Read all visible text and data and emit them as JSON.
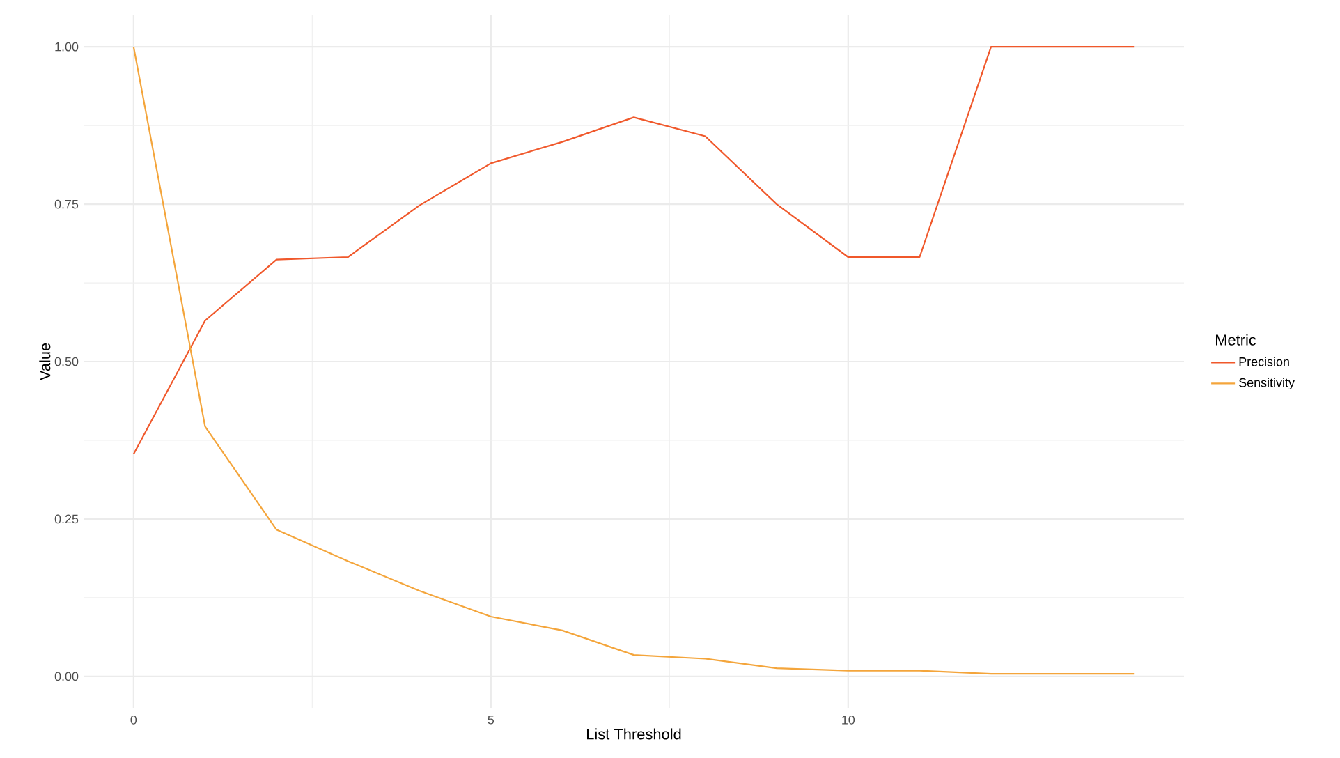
{
  "chart_data": {
    "type": "line",
    "xlabel": "List Threshold",
    "ylabel": "Value",
    "legend_title": "Metric",
    "x": [
      0,
      1,
      2,
      3,
      4,
      5,
      6,
      7,
      8,
      9,
      10,
      11,
      12,
      13,
      14
    ],
    "series": [
      {
        "name": "Precision",
        "color": "#f0582b",
        "values": [
          0.353,
          0.565,
          0.662,
          0.666,
          0.748,
          0.815,
          0.849,
          0.888,
          0.858,
          0.75,
          0.666,
          0.666,
          1.0,
          1.0,
          1.0
        ]
      },
      {
        "name": "Sensitivity",
        "color": "#f4a53b",
        "values": [
          1.0,
          0.397,
          0.233,
          0.183,
          0.136,
          0.095,
          0.073,
          0.034,
          0.028,
          0.013,
          0.009,
          0.009,
          0.004,
          0.004,
          0.004
        ]
      }
    ],
    "xlim": [
      -0.7,
      14.7
    ],
    "ylim": [
      -0.05,
      1.05
    ],
    "xticks": [
      0,
      5,
      10
    ],
    "yticks": [
      {
        "value": 0,
        "label": "0.00"
      },
      {
        "value": 0.25,
        "label": "0.25"
      },
      {
        "value": 0.5,
        "label": "0.50"
      },
      {
        "value": 0.75,
        "label": "0.75"
      },
      {
        "value": 1,
        "label": "1.00"
      }
    ],
    "grid": true,
    "legend": "right",
    "marker": "none",
    "line_style": "solid"
  }
}
